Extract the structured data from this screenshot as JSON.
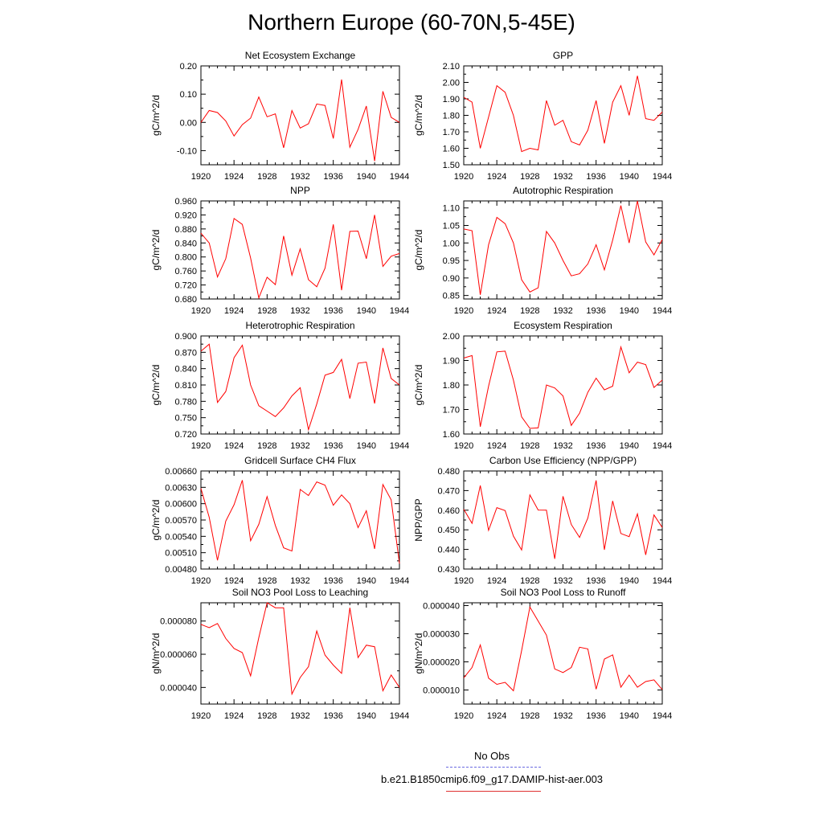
{
  "page": {
    "title": "Northern Europe (60-70N,5-45E)"
  },
  "legend": {
    "items": [
      {
        "label": "No Obs",
        "color": "#6a6ae0",
        "dash": true
      },
      {
        "label": "b.e21.B1850cmip6.f09_g17.DAMIP-hist-aer.003",
        "color": "#e03030",
        "dash": false
      }
    ]
  },
  "series_color": "#ff0000",
  "chart_data": [
    {
      "type": "line",
      "title": "Net Ecosystem Exchange",
      "ylabel": "gC/m^2/d",
      "xlim": [
        1920,
        1944
      ],
      "ylim": [
        -0.15,
        0.2
      ],
      "yticks": [
        -0.1,
        0.0,
        0.1,
        0.2
      ],
      "ytick_labels": [
        "-0.10",
        "0.00",
        "0.10",
        "0.20"
      ],
      "xticks": [
        1920,
        1924,
        1928,
        1932,
        1936,
        1940,
        1944
      ],
      "x": [
        1920,
        1921,
        1922,
        1923,
        1924,
        1925,
        1926,
        1927,
        1928,
        1929,
        1930,
        1931,
        1932,
        1933,
        1934,
        1935,
        1936,
        1937,
        1938,
        1939,
        1940,
        1941,
        1942,
        1943,
        1944
      ],
      "y": [
        0.0,
        0.042,
        0.035,
        0.005,
        -0.048,
        -0.008,
        0.015,
        0.09,
        0.02,
        0.03,
        -0.09,
        0.042,
        -0.02,
        -0.005,
        0.065,
        0.06,
        -0.057,
        0.152,
        -0.088,
        -0.025,
        0.058,
        -0.137,
        0.11,
        0.018,
        0.0
      ]
    },
    {
      "type": "line",
      "title": "GPP",
      "ylabel": "gC/m^2/d",
      "xlim": [
        1920,
        1944
      ],
      "ylim": [
        1.5,
        2.1
      ],
      "yticks": [
        1.5,
        1.6,
        1.7,
        1.8,
        1.9,
        2.0,
        2.1
      ],
      "ytick_labels": [
        "1.50",
        "1.60",
        "1.70",
        "1.80",
        "1.90",
        "2.00",
        "2.10"
      ],
      "xticks": [
        1920,
        1924,
        1928,
        1932,
        1936,
        1940,
        1944
      ],
      "x": [
        1920,
        1921,
        1922,
        1923,
        1924,
        1925,
        1926,
        1927,
        1928,
        1929,
        1930,
        1931,
        1932,
        1933,
        1934,
        1935,
        1936,
        1937,
        1938,
        1939,
        1940,
        1941,
        1942,
        1943,
        1944
      ],
      "y": [
        1.91,
        1.88,
        1.6,
        1.79,
        1.98,
        1.94,
        1.8,
        1.58,
        1.6,
        1.59,
        1.89,
        1.74,
        1.77,
        1.64,
        1.62,
        1.71,
        1.89,
        1.63,
        1.88,
        1.98,
        1.8,
        2.04,
        1.78,
        1.77,
        1.82
      ]
    },
    {
      "type": "line",
      "title": "NPP",
      "ylabel": "gC/m^2/d",
      "xlim": [
        1920,
        1944
      ],
      "ylim": [
        0.68,
        0.96
      ],
      "yticks": [
        0.68,
        0.72,
        0.76,
        0.8,
        0.84,
        0.88,
        0.92,
        0.96
      ],
      "ytick_labels": [
        "0.680",
        "0.720",
        "0.760",
        "0.800",
        "0.840",
        "0.880",
        "0.920",
        "0.960"
      ],
      "xticks": [
        1920,
        1924,
        1928,
        1932,
        1936,
        1940,
        1944
      ],
      "x": [
        1920,
        1921,
        1922,
        1923,
        1924,
        1925,
        1926,
        1927,
        1928,
        1929,
        1930,
        1931,
        1932,
        1933,
        1934,
        1935,
        1936,
        1937,
        1938,
        1939,
        1940,
        1941,
        1942,
        1943,
        1944
      ],
      "y": [
        0.868,
        0.84,
        0.743,
        0.795,
        0.91,
        0.893,
        0.797,
        0.683,
        0.742,
        0.721,
        0.86,
        0.748,
        0.823,
        0.735,
        0.715,
        0.768,
        0.893,
        0.705,
        0.873,
        0.874,
        0.795,
        0.92,
        0.773,
        0.802,
        0.81
      ]
    },
    {
      "type": "line",
      "title": "Autotrophic Respiration",
      "ylabel": "gC/m^2/d",
      "xlim": [
        1920,
        1944
      ],
      "ylim": [
        0.84,
        1.12
      ],
      "yticks": [
        0.85,
        0.9,
        0.95,
        1.0,
        1.05,
        1.1
      ],
      "ytick_labels": [
        "0.85",
        "0.90",
        "0.95",
        "1.00",
        "1.05",
        "1.10"
      ],
      "xticks": [
        1920,
        1924,
        1928,
        1932,
        1936,
        1940,
        1944
      ],
      "x": [
        1920,
        1921,
        1922,
        1923,
        1924,
        1925,
        1926,
        1927,
        1928,
        1929,
        1930,
        1931,
        1932,
        1933,
        1934,
        1935,
        1936,
        1937,
        1938,
        1939,
        1940,
        1941,
        1942,
        1943,
        1944
      ],
      "y": [
        1.04,
        1.035,
        0.852,
        0.995,
        1.073,
        1.055,
        1.0,
        0.895,
        0.86,
        0.872,
        1.033,
        1.0,
        0.95,
        0.906,
        0.912,
        0.94,
        0.995,
        0.923,
        1.008,
        1.107,
        1.0,
        1.12,
        1.003,
        0.966,
        1.01
      ]
    },
    {
      "type": "line",
      "title": "Heterotrophic Respiration",
      "ylabel": "gC/m^2/d",
      "xlim": [
        1920,
        1944
      ],
      "ylim": [
        0.72,
        0.9
      ],
      "yticks": [
        0.72,
        0.75,
        0.78,
        0.81,
        0.84,
        0.87,
        0.9
      ],
      "ytick_labels": [
        "0.720",
        "0.750",
        "0.780",
        "0.810",
        "0.840",
        "0.870",
        "0.900"
      ],
      "xticks": [
        1920,
        1924,
        1928,
        1932,
        1936,
        1940,
        1944
      ],
      "x": [
        1920,
        1921,
        1922,
        1923,
        1924,
        1925,
        1926,
        1927,
        1928,
        1929,
        1930,
        1931,
        1932,
        1933,
        1934,
        1935,
        1936,
        1937,
        1938,
        1939,
        1940,
        1941,
        1942,
        1943,
        1944
      ],
      "y": [
        0.872,
        0.885,
        0.778,
        0.798,
        0.86,
        0.883,
        0.81,
        0.772,
        0.762,
        0.752,
        0.768,
        0.79,
        0.805,
        0.728,
        0.775,
        0.828,
        0.833,
        0.857,
        0.785,
        0.85,
        0.852,
        0.776,
        0.878,
        0.822,
        0.81
      ]
    },
    {
      "type": "line",
      "title": "Ecosystem Respiration",
      "ylabel": "gC/m^2/d",
      "xlim": [
        1920,
        1944
      ],
      "ylim": [
        1.6,
        2.0
      ],
      "yticks": [
        1.6,
        1.7,
        1.8,
        1.9,
        2.0
      ],
      "ytick_labels": [
        "1.60",
        "1.70",
        "1.80",
        "1.90",
        "2.00"
      ],
      "xticks": [
        1920,
        1924,
        1928,
        1932,
        1936,
        1940,
        1944
      ],
      "x": [
        1920,
        1921,
        1922,
        1923,
        1924,
        1925,
        1926,
        1927,
        1928,
        1929,
        1930,
        1931,
        1932,
        1933,
        1934,
        1935,
        1936,
        1937,
        1938,
        1939,
        1940,
        1941,
        1942,
        1943,
        1944
      ],
      "y": [
        1.91,
        1.92,
        1.63,
        1.795,
        1.935,
        1.938,
        1.82,
        1.67,
        1.623,
        1.625,
        1.8,
        1.788,
        1.755,
        1.635,
        1.685,
        1.77,
        1.828,
        1.78,
        1.795,
        1.955,
        1.85,
        1.893,
        1.883,
        1.79,
        1.82
      ]
    },
    {
      "type": "line",
      "title": "Gridcell Surface CH4 Flux",
      "ylabel": "gC/m^2/d",
      "xlim": [
        1920,
        1944
      ],
      "ylim": [
        0.0048,
        0.0066
      ],
      "yticks": [
        0.0048,
        0.0051,
        0.0054,
        0.0057,
        0.006,
        0.0063,
        0.0066
      ],
      "ytick_labels": [
        "0.00480",
        "0.00510",
        "0.00540",
        "0.00570",
        "0.00600",
        "0.00630",
        "0.00660"
      ],
      "xticks": [
        1920,
        1924,
        1928,
        1932,
        1936,
        1940,
        1944
      ],
      "x": [
        1920,
        1921,
        1922,
        1923,
        1924,
        1925,
        1926,
        1927,
        1928,
        1929,
        1930,
        1931,
        1932,
        1933,
        1934,
        1935,
        1936,
        1937,
        1938,
        1939,
        1940,
        1941,
        1942,
        1943,
        1944
      ],
      "y": [
        0.00628,
        0.00575,
        0.00496,
        0.00568,
        0.00598,
        0.00643,
        0.00532,
        0.00562,
        0.00613,
        0.0056,
        0.00519,
        0.00513,
        0.00626,
        0.00615,
        0.0064,
        0.00634,
        0.00597,
        0.00616,
        0.006,
        0.00556,
        0.00587,
        0.00517,
        0.00635,
        0.00607,
        0.0049
      ]
    },
    {
      "type": "line",
      "title": "Carbon Use Efficiency (NPP/GPP)",
      "ylabel": "NPP/GPP",
      "xlim": [
        1920,
        1944
      ],
      "ylim": [
        0.43,
        0.48
      ],
      "yticks": [
        0.43,
        0.44,
        0.45,
        0.46,
        0.47,
        0.48
      ],
      "ytick_labels": [
        "0.430",
        "0.440",
        "0.450",
        "0.460",
        "0.470",
        "0.480"
      ],
      "xticks": [
        1920,
        1924,
        1928,
        1932,
        1936,
        1940,
        1944
      ],
      "x": [
        1920,
        1921,
        1922,
        1923,
        1924,
        1925,
        1926,
        1927,
        1928,
        1929,
        1930,
        1931,
        1932,
        1933,
        1934,
        1935,
        1936,
        1937,
        1938,
        1939,
        1940,
        1941,
        1942,
        1943,
        1944
      ],
      "y": [
        0.4605,
        0.4533,
        0.4726,
        0.4497,
        0.4613,
        0.4598,
        0.4468,
        0.4397,
        0.4678,
        0.4601,
        0.46,
        0.4352,
        0.4671,
        0.4527,
        0.4461,
        0.456,
        0.4752,
        0.4398,
        0.4647,
        0.4481,
        0.4465,
        0.4581,
        0.4372,
        0.4576,
        0.4512
      ]
    },
    {
      "type": "line",
      "title": "Soil NO3 Pool Loss to Leaching",
      "ylabel": "gN/m^2/d",
      "xlim": [
        1920,
        1944
      ],
      "ylim": [
        3e-05,
        9.1e-05
      ],
      "yticks": [
        4e-05,
        6e-05,
        8e-05
      ],
      "ytick_labels": [
        "0.000040",
        "0.000060",
        "0.000080"
      ],
      "xticks": [
        1920,
        1924,
        1928,
        1932,
        1936,
        1940,
        1944
      ],
      "x": [
        1920,
        1921,
        1922,
        1923,
        1924,
        1925,
        1926,
        1927,
        1928,
        1929,
        1930,
        1931,
        1932,
        1933,
        1934,
        1935,
        1936,
        1937,
        1938,
        1939,
        1940,
        1941,
        1942,
        1943,
        1944
      ],
      "y": [
        7.8e-05,
        7.6e-05,
        7.85e-05,
        6.95e-05,
        6.35e-05,
        6.1e-05,
        4.7e-05,
        7e-05,
        9.1e-05,
        8.8e-05,
        8.8e-05,
        3.6e-05,
        4.6e-05,
        5.25e-05,
        7.4e-05,
        5.95e-05,
        5.35e-05,
        4.85e-05,
        8.8e-05,
        5.8e-05,
        6.55e-05,
        6.45e-05,
        3.8e-05,
        4.75e-05,
        4e-05
      ]
    },
    {
      "type": "line",
      "title": "Soil NO3 Pool Loss to Runoff",
      "ylabel": "gN/m^2/d",
      "xlim": [
        1920,
        1944
      ],
      "ylim": [
        5e-06,
        4.1e-05
      ],
      "yticks": [
        1e-05,
        2e-05,
        3e-05,
        4e-05
      ],
      "ytick_labels": [
        "0.000010",
        "0.000020",
        "0.000030",
        "0.000040"
      ],
      "xticks": [
        1920,
        1924,
        1928,
        1932,
        1936,
        1940,
        1944
      ],
      "x": [
        1920,
        1921,
        1922,
        1923,
        1924,
        1925,
        1926,
        1927,
        1928,
        1929,
        1930,
        1931,
        1932,
        1933,
        1934,
        1935,
        1936,
        1937,
        1938,
        1939,
        1940,
        1941,
        1942,
        1943,
        1944
      ],
      "y": [
        1.43e-05,
        1.8e-05,
        2.6e-05,
        1.42e-05,
        1.2e-05,
        1.27e-05,
        9.7e-06,
        2.4e-05,
        3.95e-05,
        3.45e-05,
        2.95e-05,
        1.75e-05,
        1.62e-05,
        1.8e-05,
        2.52e-05,
        2.46e-05,
        1.03e-05,
        2.1e-05,
        2.25e-05,
        1.1e-05,
        1.53e-05,
        1.1e-05,
        1.3e-05,
        1.36e-05,
        1.01e-05
      ]
    }
  ]
}
